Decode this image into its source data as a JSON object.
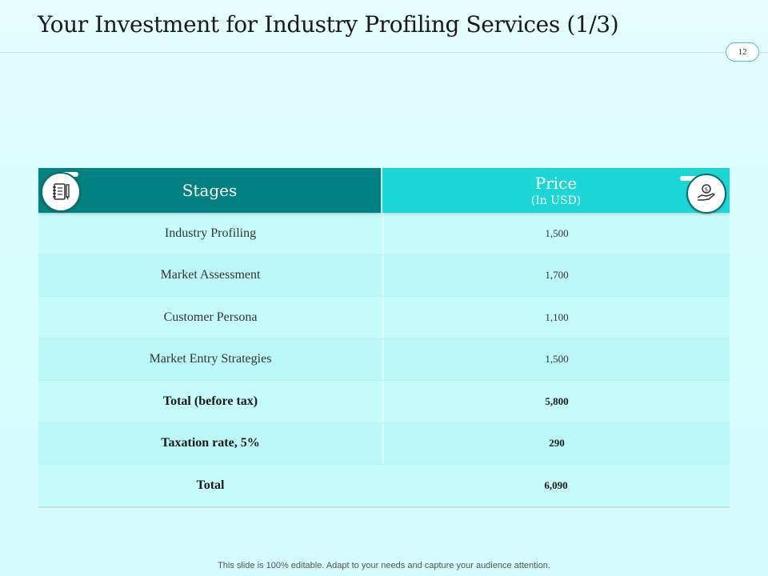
{
  "slide": {
    "title": "Your Investment for Industry Profiling Services (1/3)",
    "page_number": "12",
    "footer": "This slide is 100% editable. Adapt to your needs and capture your audience attention."
  },
  "table": {
    "header": {
      "stages": "Stages",
      "price": "Price",
      "price_sub": "(In USD)",
      "stages_icon": "notebook-pen-icon",
      "price_icon": "hand-money-icon"
    },
    "rows": [
      {
        "stage": "Industry Profiling",
        "price": "1,500"
      },
      {
        "stage": "Market Assessment",
        "price": "1,700"
      },
      {
        "stage": "Customer Persona",
        "price": "1,100"
      },
      {
        "stage": "Market Entry Strategies",
        "price": "1,500"
      },
      {
        "stage": "Total (before tax)",
        "price": "5,800"
      },
      {
        "stage": "Taxation rate, 5%",
        "price": "290"
      },
      {
        "stage": "Total",
        "price": "6,090"
      }
    ]
  },
  "colors": {
    "header_dark": "#008080",
    "header_light": "#1cd6d6",
    "row_fill": "#c6fbfb",
    "background": "#dcfcfc"
  }
}
